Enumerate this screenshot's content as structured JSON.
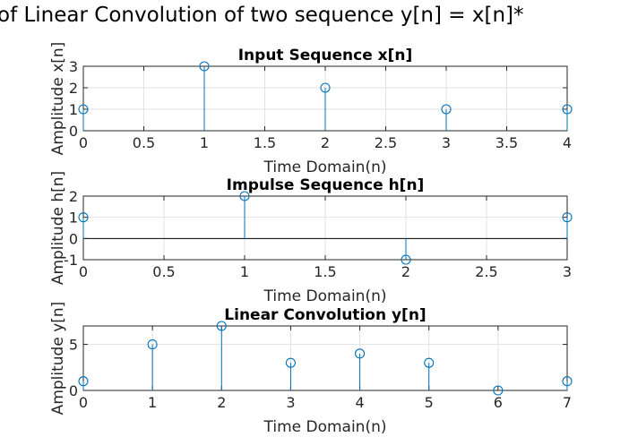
{
  "figure": {
    "suptitle": "of Linear Convolution of two sequence y[n] = x[n]*"
  },
  "chart_data": [
    {
      "type": "stem",
      "title": "Input Sequence x[n]",
      "xlabel": "Time Domain(n)",
      "ylabel": "Amplitude x[n]",
      "xlim": [
        0,
        4
      ],
      "ylim": [
        0,
        3
      ],
      "xticks": [
        0,
        0.5,
        1,
        1.5,
        2,
        2.5,
        3,
        3.5,
        4
      ],
      "xticklabels": [
        "0",
        "0.5",
        "1",
        "1.5",
        "2",
        "2.5",
        "3",
        "3.5",
        "4"
      ],
      "yticks": [
        0,
        1,
        2,
        3
      ],
      "yticklabels": [
        "0",
        "1",
        "2",
        "3"
      ],
      "grid": true,
      "x": [
        0,
        1,
        2,
        3,
        4
      ],
      "values": [
        1,
        3,
        2,
        1,
        1
      ],
      "color": "#0072BD"
    },
    {
      "type": "stem",
      "title": "Impulse Sequence h[n]",
      "xlabel": "Time Domain(n)",
      "ylabel": "Amplitude h[n]",
      "xlim": [
        0,
        3
      ],
      "ylim": [
        -1,
        2
      ],
      "xticks": [
        0,
        0.5,
        1,
        1.5,
        2,
        2.5,
        3
      ],
      "xticklabels": [
        "0",
        "0.5",
        "1",
        "1.5",
        "2",
        "2.5",
        "3"
      ],
      "yticks": [
        -1,
        0,
        1,
        2
      ],
      "yticklabels": [
        "-1",
        "0",
        "1",
        "2"
      ],
      "grid": true,
      "x": [
        0,
        1,
        2,
        3
      ],
      "values": [
        1,
        2,
        -1,
        1
      ],
      "color": "#0072BD"
    },
    {
      "type": "stem",
      "title": "Linear Convolution y[n]",
      "xlabel": "Time Domain(n)",
      "ylabel": "Amplitude y[n]",
      "xlim": [
        0,
        7
      ],
      "ylim": [
        0,
        7
      ],
      "xticks": [
        0,
        1,
        2,
        3,
        4,
        5,
        6,
        7
      ],
      "xticklabels": [
        "0",
        "1",
        "2",
        "3",
        "4",
        "5",
        "6",
        "7"
      ],
      "yticks": [
        0,
        5
      ],
      "yticklabels": [
        "0",
        "5"
      ],
      "grid": true,
      "x": [
        0,
        1,
        2,
        3,
        4,
        5,
        6,
        7
      ],
      "values": [
        1,
        5,
        7,
        3,
        4,
        3,
        0,
        1
      ],
      "color": "#0072BD"
    }
  ]
}
